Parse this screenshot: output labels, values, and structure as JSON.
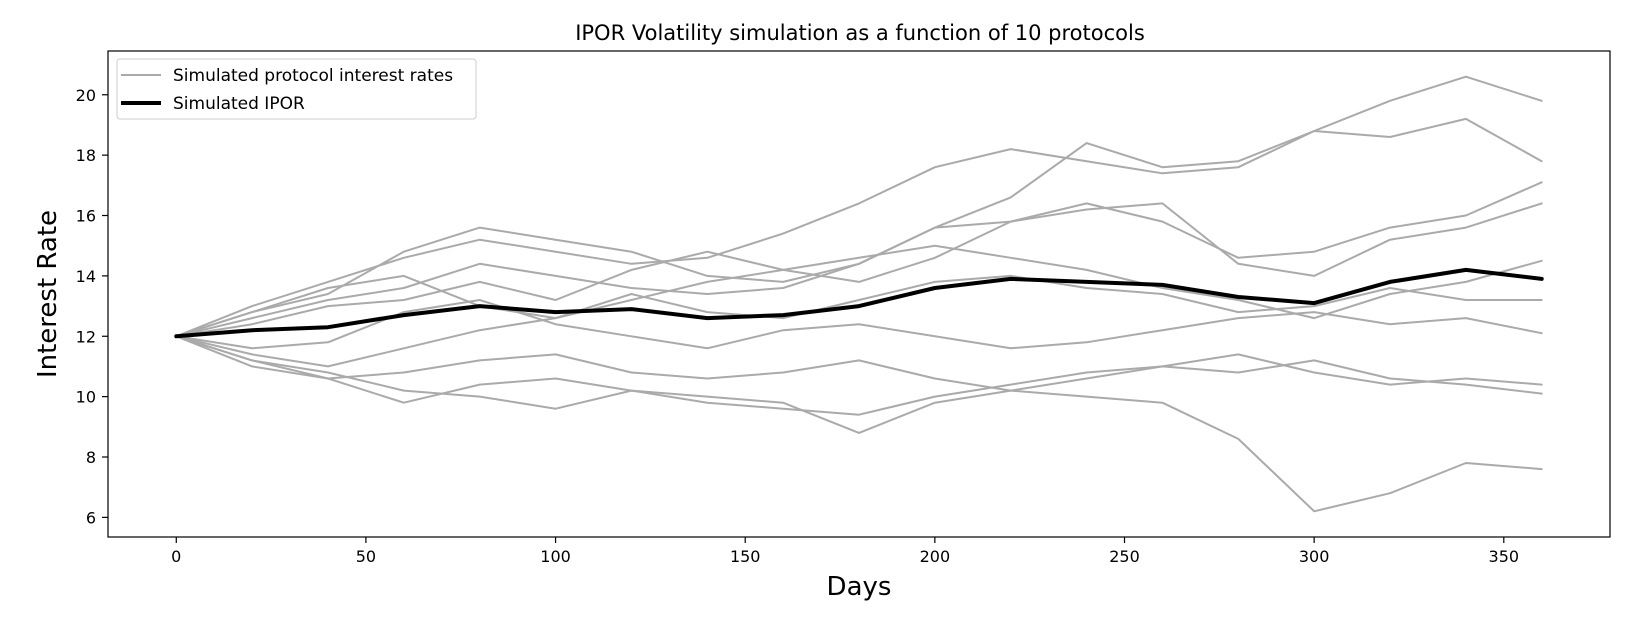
{
  "chart_data": {
    "type": "line",
    "title": "IPOR Volatility simulation as a function of 10 protocols",
    "xlabel": "Days",
    "ylabel": "Interest Rate",
    "xlim": [
      -18,
      378
    ],
    "ylim": [
      5.35,
      21.45
    ],
    "xticks": [
      0,
      50,
      100,
      150,
      200,
      250,
      300,
      350
    ],
    "yticks": [
      6,
      8,
      10,
      12,
      14,
      16,
      18,
      20
    ],
    "grid": false,
    "legend_position": "top-left",
    "legend": [
      {
        "label": "Simulated protocol interest rates",
        "color": "#aaaaaa"
      },
      {
        "label": "Simulated IPOR",
        "color": "#000000"
      }
    ],
    "series": [
      {
        "role": "protocol",
        "color": "#aaaaaa",
        "x": [
          0,
          20,
          40,
          60,
          80,
          100,
          120,
          140,
          160,
          180,
          200,
          220,
          240,
          260,
          280,
          300,
          320,
          340,
          360
        ],
        "y": [
          12.0,
          13.0,
          13.8,
          14.6,
          15.2,
          14.8,
          14.4,
          14.6,
          15.4,
          16.4,
          17.6,
          18.2,
          17.8,
          17.4,
          17.6,
          18.8,
          19.8,
          20.6,
          19.8
        ]
      },
      {
        "role": "protocol",
        "color": "#aaaaaa",
        "x": [
          0,
          20,
          40,
          60,
          80,
          100,
          120,
          140,
          160,
          180,
          200,
          220,
          240,
          260,
          280,
          300,
          320,
          340,
          360
        ],
        "y": [
          12.0,
          12.6,
          13.2,
          13.6,
          14.4,
          14.0,
          13.6,
          13.4,
          13.6,
          14.4,
          15.6,
          16.6,
          18.4,
          17.6,
          17.8,
          18.8,
          18.6,
          19.2,
          17.8
        ]
      },
      {
        "role": "protocol",
        "color": "#aaaaaa",
        "x": [
          0,
          20,
          40,
          60,
          80,
          100,
          120,
          140,
          160,
          180,
          200,
          220,
          240,
          260,
          280,
          300,
          320,
          340,
          360
        ],
        "y": [
          12.0,
          12.8,
          13.4,
          14.8,
          15.6,
          15.2,
          14.8,
          14.0,
          13.8,
          14.4,
          15.6,
          15.8,
          16.4,
          15.8,
          14.6,
          14.8,
          15.6,
          16.0,
          17.1
        ]
      },
      {
        "role": "protocol",
        "color": "#aaaaaa",
        "x": [
          0,
          20,
          40,
          60,
          80,
          100,
          120,
          140,
          160,
          180,
          200,
          220,
          240,
          260,
          280,
          300,
          320,
          340,
          360
        ],
        "y": [
          12.0,
          12.4,
          13.0,
          13.2,
          13.8,
          13.2,
          14.2,
          14.8,
          14.2,
          13.8,
          14.6,
          15.8,
          16.2,
          16.4,
          14.4,
          14.0,
          15.2,
          15.6,
          16.4
        ]
      },
      {
        "role": "protocol",
        "color": "#aaaaaa",
        "x": [
          0,
          20,
          40,
          60,
          80,
          100,
          120,
          140,
          160,
          180,
          200,
          220,
          240,
          260,
          280,
          300,
          320,
          340,
          360
        ],
        "y": [
          12.0,
          12.8,
          13.6,
          14.0,
          13.0,
          12.6,
          13.2,
          13.8,
          14.2,
          14.6,
          15.0,
          14.6,
          14.2,
          13.6,
          13.2,
          12.6,
          13.4,
          13.8,
          14.5
        ]
      },
      {
        "role": "protocol",
        "color": "#aaaaaa",
        "x": [
          0,
          20,
          40,
          60,
          80,
          100,
          120,
          140,
          160,
          180,
          200,
          220,
          240,
          260,
          280,
          300,
          320,
          340,
          360
        ],
        "y": [
          12.0,
          11.4,
          11.0,
          11.6,
          12.2,
          12.6,
          13.4,
          12.8,
          12.6,
          13.2,
          13.8,
          14.0,
          13.6,
          13.4,
          12.8,
          13.0,
          13.6,
          13.2,
          13.2
        ]
      },
      {
        "role": "protocol",
        "color": "#aaaaaa",
        "x": [
          0,
          20,
          40,
          60,
          80,
          100,
          120,
          140,
          160,
          180,
          200,
          220,
          240,
          260,
          280,
          300,
          320,
          340,
          360
        ],
        "y": [
          12.0,
          11.6,
          11.8,
          12.8,
          13.2,
          12.4,
          12.0,
          11.6,
          12.2,
          12.4,
          12.0,
          11.6,
          11.8,
          12.2,
          12.6,
          12.8,
          12.4,
          12.6,
          12.1
        ]
      },
      {
        "role": "protocol",
        "color": "#aaaaaa",
        "x": [
          0,
          20,
          40,
          60,
          80,
          100,
          120,
          140,
          160,
          180,
          200,
          220,
          240,
          260,
          280,
          300,
          320,
          340,
          360
        ],
        "y": [
          12.0,
          11.0,
          10.6,
          10.8,
          11.2,
          11.4,
          10.8,
          10.6,
          10.8,
          11.2,
          10.6,
          10.2,
          10.6,
          11.0,
          11.4,
          10.8,
          10.4,
          10.6,
          10.4
        ]
      },
      {
        "role": "protocol",
        "color": "#aaaaaa",
        "x": [
          0,
          20,
          40,
          60,
          80,
          100,
          120,
          140,
          160,
          180,
          200,
          220,
          240,
          260,
          280,
          300,
          320,
          340,
          360
        ],
        "y": [
          12.0,
          11.2,
          10.6,
          9.8,
          10.4,
          10.6,
          10.2,
          9.8,
          9.6,
          9.4,
          10.0,
          10.4,
          10.8,
          11.0,
          10.8,
          11.2,
          10.6,
          10.4,
          10.1
        ]
      },
      {
        "role": "protocol",
        "color": "#aaaaaa",
        "x": [
          0,
          20,
          40,
          60,
          80,
          100,
          120,
          140,
          160,
          180,
          200,
          220,
          240,
          260,
          280,
          300,
          320,
          340,
          360
        ],
        "y": [
          12.0,
          11.2,
          10.8,
          10.2,
          10.0,
          9.6,
          10.2,
          10.0,
          9.8,
          8.8,
          9.8,
          10.2,
          10.0,
          9.8,
          8.6,
          6.2,
          6.8,
          7.8,
          7.6
        ]
      },
      {
        "role": "ipor",
        "color": "#000000",
        "x": [
          0,
          20,
          40,
          60,
          80,
          100,
          120,
          140,
          160,
          180,
          200,
          220,
          240,
          260,
          280,
          300,
          320,
          340,
          360
        ],
        "y": [
          12.0,
          12.2,
          12.3,
          12.7,
          13.0,
          12.8,
          12.9,
          12.6,
          12.7,
          13.0,
          13.6,
          13.9,
          13.8,
          13.7,
          13.3,
          13.1,
          13.8,
          14.2,
          13.9
        ]
      }
    ]
  }
}
